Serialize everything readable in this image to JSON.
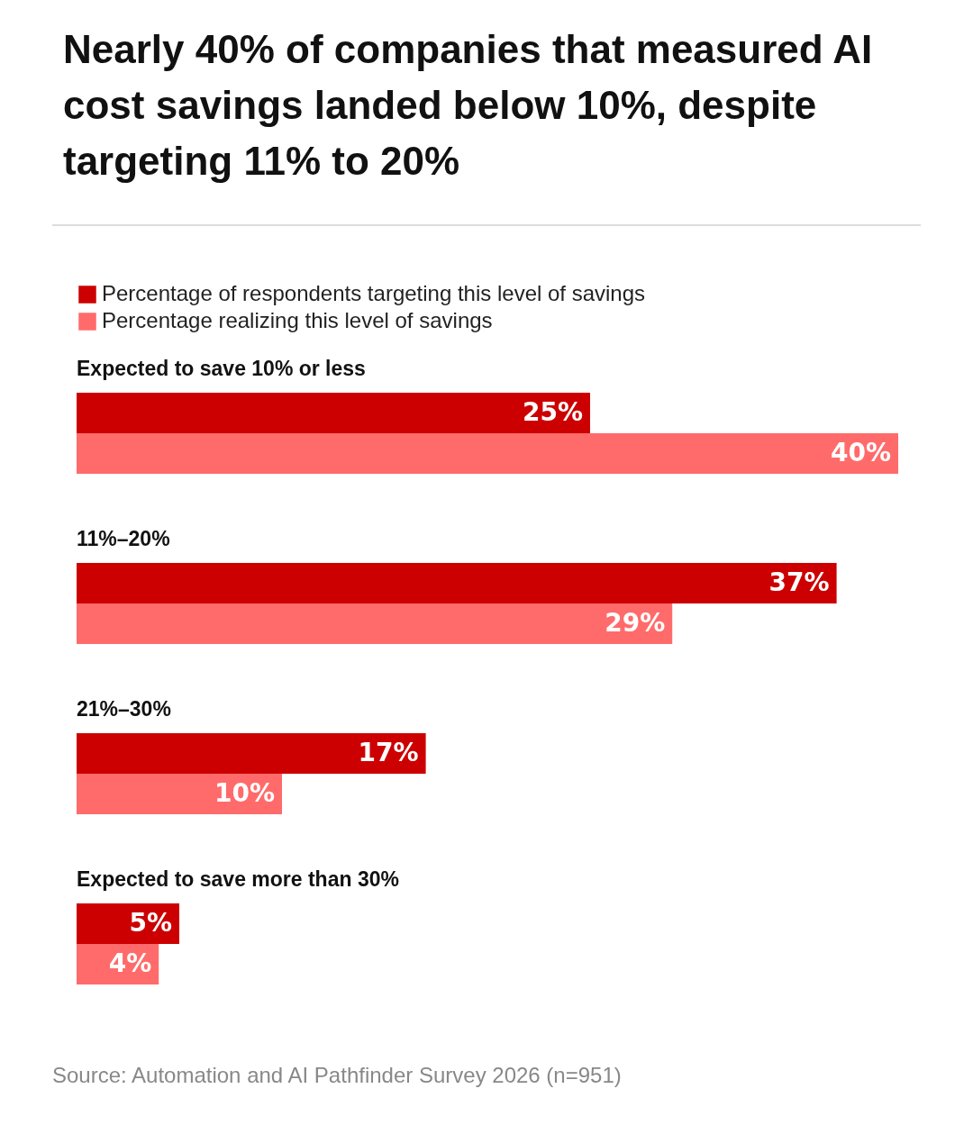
{
  "chart_data": {
    "type": "bar",
    "orientation": "horizontal",
    "title": "Nearly 40% of companies that measured AI cost savings landed below 10%, despite targeting 11% to 20%",
    "categories": [
      "Expected to save 10% or less",
      "11%–20%",
      "21%–30%",
      "Expected to save more than 30%"
    ],
    "series": [
      {
        "name": "Percentage of respondents targeting this level of savings",
        "color": "#cc0000",
        "values": [
          25,
          37,
          17,
          5
        ],
        "value_labels": [
          "25%",
          "37%",
          "17%",
          "5%"
        ]
      },
      {
        "name": "Percentage realizing this level of savings",
        "color": "#ff6b6b",
        "values": [
          40,
          29,
          10,
          4
        ],
        "value_labels": [
          "40%",
          "29%",
          "10%",
          "4%"
        ]
      }
    ],
    "legend": "top left",
    "annotations": [
      "Source: Automation and AI Pathfinder Survey 2026 (n=951)"
    ]
  }
}
